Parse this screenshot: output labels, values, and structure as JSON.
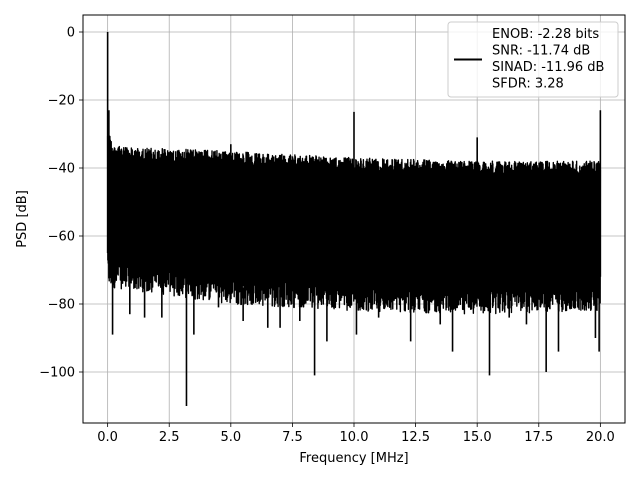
{
  "chart_data": {
    "type": "line",
    "xlabel": "Frequency [MHz]",
    "ylabel": "PSD [dB]",
    "xlim": [
      -1.0,
      21.0
    ],
    "ylim": [
      -115,
      5
    ],
    "xticks": [
      0.0,
      2.5,
      5.0,
      7.5,
      10.0,
      12.5,
      15.0,
      17.5,
      20.0
    ],
    "xtick_labels": [
      "0.0",
      "2.5",
      "5.0",
      "7.5",
      "10.0",
      "12.5",
      "15.0",
      "17.5",
      "20.0"
    ],
    "yticks": [
      0,
      -20,
      -40,
      -60,
      -80,
      -100
    ],
    "ytick_labels": [
      "0",
      "−20",
      "−40",
      "−60",
      "−80",
      "−100"
    ],
    "grid": true,
    "legend_position": "top-right",
    "line_color": "#000000",
    "series": [
      {
        "legend_lines": [
          "ENOB: -2.28 bits",
          "SNR: -11.74 dB",
          "SINAD: -11.96 dB",
          "SFDR: 3.28"
        ],
        "x_range": [
          0.0,
          20.0
        ],
        "noise_ceiling": [
          [
            0.0,
            -28
          ],
          [
            0.2,
            -33
          ],
          [
            1.0,
            -34
          ],
          [
            5.0,
            -35
          ],
          [
            10.0,
            -37
          ],
          [
            15.0,
            -38
          ],
          [
            20.0,
            -38
          ]
        ],
        "noise_floor": [
          [
            0.0,
            -75
          ],
          [
            5.0,
            -80
          ],
          [
            10.0,
            -82
          ],
          [
            15.0,
            -83
          ],
          [
            20.0,
            -82
          ]
        ],
        "spikes": [
          {
            "x": 0.0,
            "y": 0
          },
          {
            "x": 0.05,
            "y": -23
          },
          {
            "x": 5.0,
            "y": -33
          },
          {
            "x": 10.0,
            "y": -23.5
          },
          {
            "x": 15.0,
            "y": -31
          },
          {
            "x": 20.0,
            "y": -23
          }
        ],
        "dips": [
          {
            "x": 0.2,
            "y": -89
          },
          {
            "x": 0.9,
            "y": -83
          },
          {
            "x": 1.5,
            "y": -84
          },
          {
            "x": 2.2,
            "y": -84
          },
          {
            "x": 3.2,
            "y": -110
          },
          {
            "x": 3.5,
            "y": -89
          },
          {
            "x": 4.5,
            "y": -81
          },
          {
            "x": 5.5,
            "y": -85
          },
          {
            "x": 6.5,
            "y": -87
          },
          {
            "x": 7.0,
            "y": -87
          },
          {
            "x": 7.8,
            "y": -85
          },
          {
            "x": 8.4,
            "y": -101
          },
          {
            "x": 8.9,
            "y": -91
          },
          {
            "x": 10.1,
            "y": -89
          },
          {
            "x": 11.0,
            "y": -84
          },
          {
            "x": 12.3,
            "y": -91
          },
          {
            "x": 13.5,
            "y": -86
          },
          {
            "x": 14.0,
            "y": -94
          },
          {
            "x": 15.5,
            "y": -101
          },
          {
            "x": 16.3,
            "y": -84
          },
          {
            "x": 17.0,
            "y": -86
          },
          {
            "x": 17.8,
            "y": -100
          },
          {
            "x": 18.3,
            "y": -94
          },
          {
            "x": 19.8,
            "y": -90
          },
          {
            "x": 19.95,
            "y": -94
          }
        ]
      }
    ]
  }
}
